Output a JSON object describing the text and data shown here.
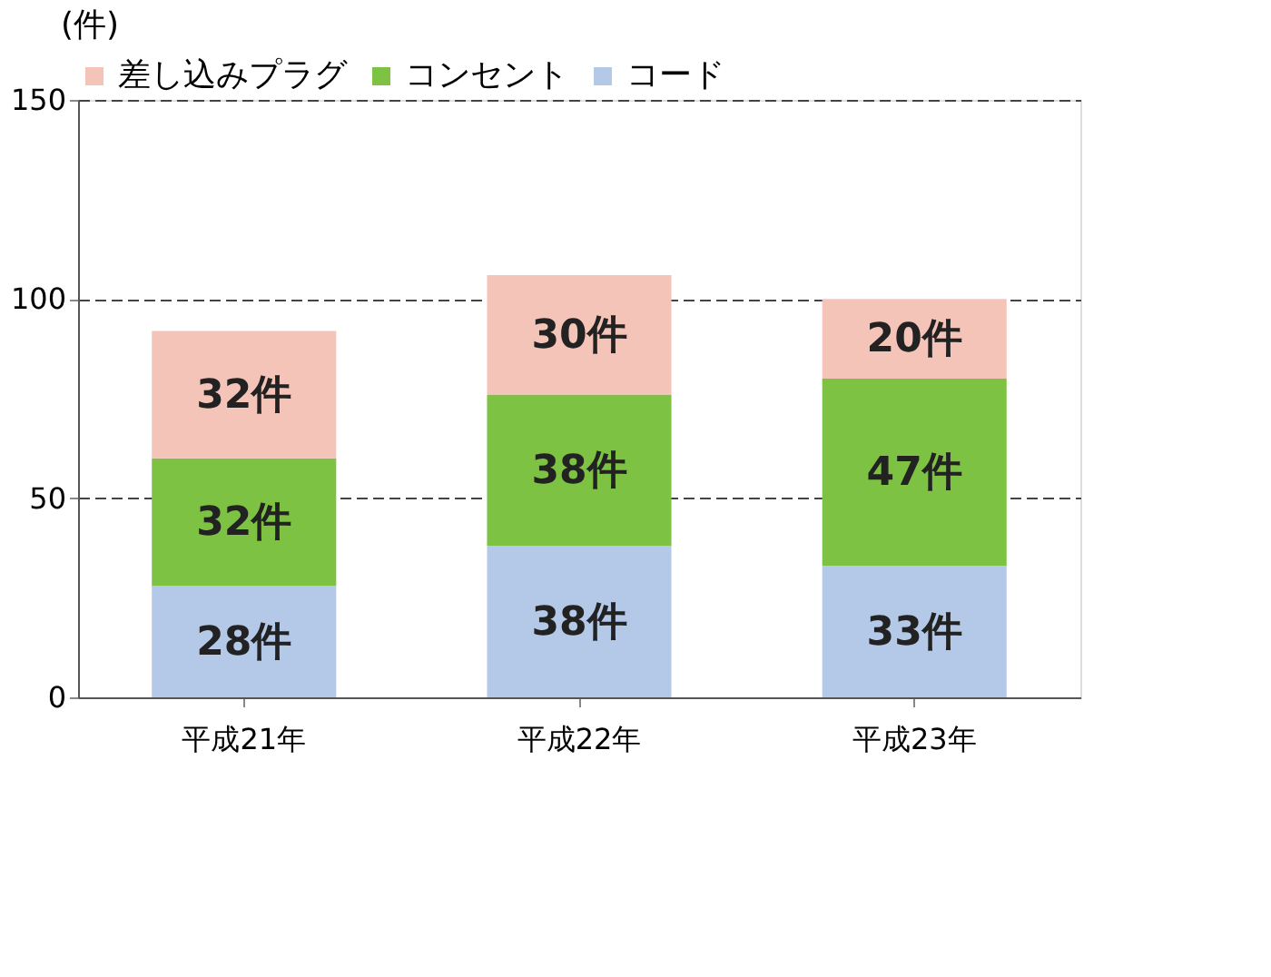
{
  "chart_data": {
    "type": "bar",
    "stacked": true,
    "ylabel": "(件)",
    "categories": [
      "平成21年",
      "平成22年",
      "平成23年"
    ],
    "series": [
      {
        "name": "コード",
        "color": "#b4c8e8",
        "values": [
          28,
          38,
          33
        ],
        "value_labels": [
          "28件",
          "38件",
          "33件"
        ]
      },
      {
        "name": "コンセント",
        "color": "#7dc242",
        "values": [
          32,
          38,
          47
        ],
        "value_labels": [
          "32件",
          "38件",
          "47件"
        ]
      },
      {
        "name": "差し込みプラグ",
        "color": "#f5c4b8",
        "values": [
          32,
          30,
          20
        ],
        "value_labels": [
          "32件",
          "30件",
          "20件"
        ]
      }
    ],
    "ylim": [
      0,
      150
    ],
    "yticks": [
      0,
      50,
      100,
      150
    ],
    "grid": "y",
    "legend": "top"
  }
}
